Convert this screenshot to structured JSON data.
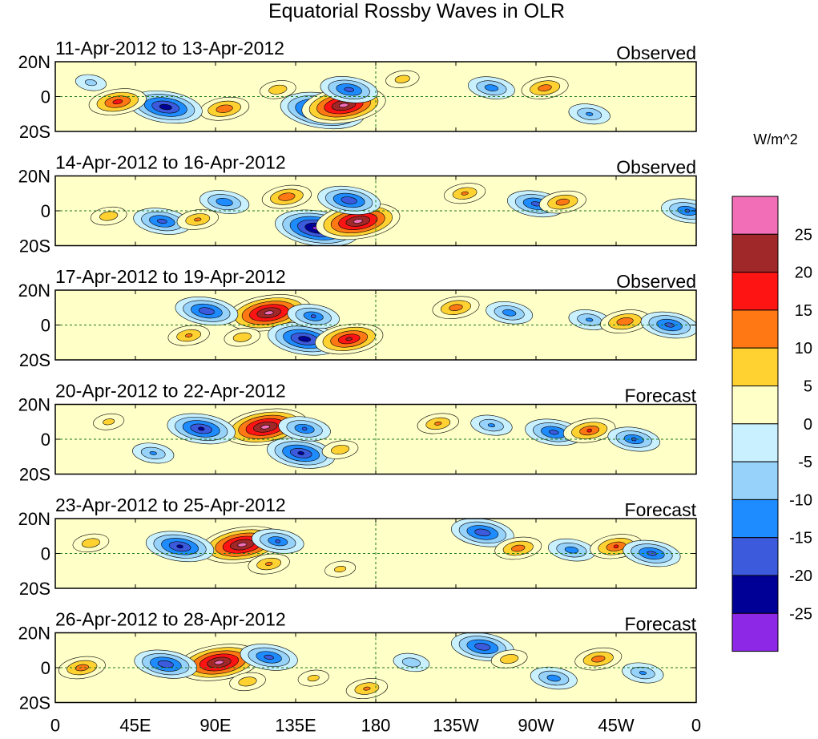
{
  "chart_data": {
    "type": "heatmap",
    "title": "Equatorial Rossby Waves in OLR",
    "units_label": "W/m^2",
    "x_tick_labels": [
      "0",
      "45E",
      "90E",
      "135E",
      "180",
      "135W",
      "90W",
      "45W",
      "0"
    ],
    "x_tick_lons": [
      0,
      45,
      90,
      135,
      180,
      225,
      270,
      315,
      360
    ],
    "xlim": [
      0,
      360
    ],
    "y_tick_labels": [
      "20N",
      "0",
      "20S"
    ],
    "y_tick_lats": [
      20,
      0,
      -20
    ],
    "ylim": [
      -20,
      20
    ],
    "colorbar": {
      "levels": [
        "25",
        "20",
        "15",
        "10",
        "5",
        "0",
        "-5",
        "-10",
        "-15",
        "-20",
        "-25"
      ],
      "colors": [
        "#f26eb6",
        "#a02828",
        "#ff1414",
        "#ff7814",
        "#ffd232",
        "#ffffc8",
        "#c8f0ff",
        "#96d2fa",
        "#1e8cff",
        "#3c5adc",
        "#000096",
        "#8c28e6"
      ]
    },
    "panels": [
      {
        "date_range": "11-Apr-2012 to 13-Apr-2012",
        "label": "Observed",
        "features": [
          {
            "lon": 150,
            "lat": -8,
            "value": -28
          },
          {
            "lon": 162,
            "lat": -5,
            "value": 28
          },
          {
            "lon": 95,
            "lat": -7,
            "value": 15
          },
          {
            "lon": 62,
            "lat": -6,
            "value": -24
          },
          {
            "lon": 35,
            "lat": -3,
            "value": 18
          },
          {
            "lon": 125,
            "lat": 4,
            "value": 10
          },
          {
            "lon": 165,
            "lat": 4,
            "value": -18
          },
          {
            "lon": 195,
            "lat": 10,
            "value": 9
          },
          {
            "lon": 245,
            "lat": 5,
            "value": -14
          },
          {
            "lon": 275,
            "lat": 5,
            "value": 14
          },
          {
            "lon": 300,
            "lat": -10,
            "value": -12
          },
          {
            "lon": 20,
            "lat": 8,
            "value": -8
          }
        ]
      },
      {
        "date_range": "14-Apr-2012 to 16-Apr-2012",
        "label": "Observed",
        "features": [
          {
            "lon": 147,
            "lat": -10,
            "value": -28
          },
          {
            "lon": 170,
            "lat": -6,
            "value": 28
          },
          {
            "lon": 130,
            "lat": 8,
            "value": 15
          },
          {
            "lon": 95,
            "lat": 5,
            "value": -15
          },
          {
            "lon": 60,
            "lat": -6,
            "value": -18
          },
          {
            "lon": 80,
            "lat": -5,
            "value": 12
          },
          {
            "lon": 30,
            "lat": -3,
            "value": 10
          },
          {
            "lon": 165,
            "lat": 6,
            "value": -20
          },
          {
            "lon": 230,
            "lat": 10,
            "value": 12
          },
          {
            "lon": 270,
            "lat": 4,
            "value": -18
          },
          {
            "lon": 285,
            "lat": 5,
            "value": 14
          },
          {
            "lon": 355,
            "lat": 0,
            "value": -16
          }
        ]
      },
      {
        "date_range": "17-Apr-2012 to 19-Apr-2012",
        "label": "Observed",
        "features": [
          {
            "lon": 120,
            "lat": 7,
            "value": 28
          },
          {
            "lon": 140,
            "lat": -8,
            "value": -24
          },
          {
            "lon": 85,
            "lat": 8,
            "value": -20
          },
          {
            "lon": 165,
            "lat": -8,
            "value": 22
          },
          {
            "lon": 75,
            "lat": -6,
            "value": 12
          },
          {
            "lon": 105,
            "lat": -7,
            "value": 10
          },
          {
            "lon": 145,
            "lat": 5,
            "value": -16
          },
          {
            "lon": 225,
            "lat": 10,
            "value": 14
          },
          {
            "lon": 255,
            "lat": 7,
            "value": -14
          },
          {
            "lon": 300,
            "lat": 3,
            "value": -12
          },
          {
            "lon": 320,
            "lat": 2,
            "value": 15
          },
          {
            "lon": 345,
            "lat": 0,
            "value": -18
          }
        ]
      },
      {
        "date_range": "20-Apr-2012 to 22-Apr-2012",
        "label": "Forecast",
        "features": [
          {
            "lon": 118,
            "lat": 7,
            "value": 28
          },
          {
            "lon": 82,
            "lat": 6,
            "value": -22
          },
          {
            "lon": 138,
            "lat": -8,
            "value": -22
          },
          {
            "lon": 140,
            "lat": 6,
            "value": -16
          },
          {
            "lon": 160,
            "lat": -6,
            "value": 10
          },
          {
            "lon": 30,
            "lat": 10,
            "value": 8
          },
          {
            "lon": 55,
            "lat": -8,
            "value": -12
          },
          {
            "lon": 215,
            "lat": 9,
            "value": 12
          },
          {
            "lon": 245,
            "lat": 8,
            "value": -12
          },
          {
            "lon": 280,
            "lat": 4,
            "value": -18
          },
          {
            "lon": 300,
            "lat": 5,
            "value": 16
          },
          {
            "lon": 325,
            "lat": 0,
            "value": -16
          }
        ]
      },
      {
        "date_range": "23-Apr-2012 to 25-Apr-2012",
        "label": "Forecast",
        "features": [
          {
            "lon": 105,
            "lat": 5,
            "value": 28
          },
          {
            "lon": 70,
            "lat": 4,
            "value": -22
          },
          {
            "lon": 120,
            "lat": -6,
            "value": 12
          },
          {
            "lon": 125,
            "lat": 7,
            "value": -16
          },
          {
            "lon": 20,
            "lat": 6,
            "value": 10
          },
          {
            "lon": 160,
            "lat": -9,
            "value": 8
          },
          {
            "lon": 240,
            "lat": 12,
            "value": -20
          },
          {
            "lon": 260,
            "lat": 3,
            "value": 14
          },
          {
            "lon": 290,
            "lat": 2,
            "value": -14
          },
          {
            "lon": 315,
            "lat": 4,
            "value": 16
          },
          {
            "lon": 335,
            "lat": 0,
            "value": -18
          }
        ]
      },
      {
        "date_range": "26-Apr-2012 to 28-Apr-2012",
        "label": "Forecast",
        "features": [
          {
            "lon": 92,
            "lat": 3,
            "value": 28
          },
          {
            "lon": 62,
            "lat": 2,
            "value": -20
          },
          {
            "lon": 15,
            "lat": 0,
            "value": 14
          },
          {
            "lon": 108,
            "lat": -8,
            "value": 10
          },
          {
            "lon": 120,
            "lat": 6,
            "value": -18
          },
          {
            "lon": 145,
            "lat": -6,
            "value": 8
          },
          {
            "lon": 175,
            "lat": -12,
            "value": 12
          },
          {
            "lon": 200,
            "lat": 3,
            "value": -10
          },
          {
            "lon": 240,
            "lat": 12,
            "value": -20
          },
          {
            "lon": 255,
            "lat": 5,
            "value": 10
          },
          {
            "lon": 280,
            "lat": -6,
            "value": -14
          },
          {
            "lon": 305,
            "lat": 5,
            "value": 14
          },
          {
            "lon": 330,
            "lat": -3,
            "value": -12
          }
        ]
      }
    ]
  }
}
